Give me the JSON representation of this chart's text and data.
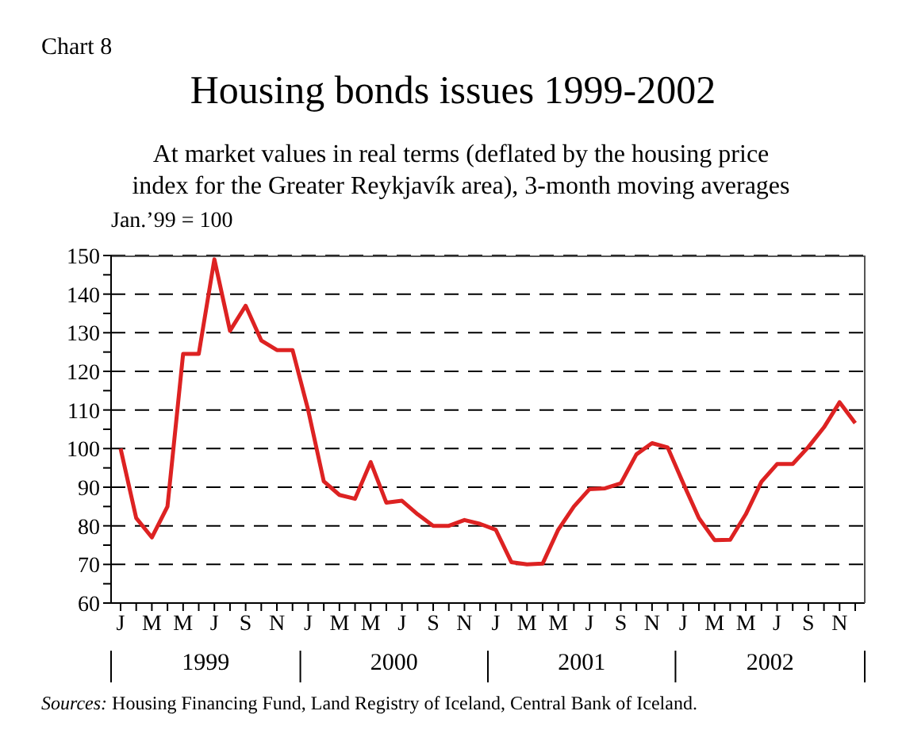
{
  "chart_data": {
    "type": "line",
    "title": "Housing bonds issues 1999-2002",
    "subtitle": "At market values in real terms (deflated by the housing price index for the Greater Reykjavík area), 3-month moving averages",
    "ylabel": "Jan.’99 = 100",
    "annotations": [
      "Chart 8",
      "1999",
      "2000",
      "2001",
      "2002",
      "Sources: Housing Financing Fund, Land Registry of Iceland, Central Bank of Iceland."
    ],
    "categories": [
      "J",
      null,
      "M",
      null,
      "M",
      null,
      "J",
      null,
      "S",
      null,
      "N",
      null,
      "J",
      null,
      "M",
      null,
      "M",
      null,
      "J",
      null,
      "S",
      null,
      "N",
      null,
      "J",
      null,
      "M",
      null,
      "M",
      null,
      "J",
      null,
      "S",
      null,
      "N",
      null,
      "J",
      null,
      "M",
      null,
      "M",
      null,
      "J",
      null,
      "S",
      null,
      "N",
      null
    ],
    "series": [
      {
        "color": "#dd2222",
        "values": [
          100,
          82,
          77,
          85,
          124.5,
          124.5,
          149,
          130.5,
          137,
          128,
          125.5,
          125.5,
          110,
          91.5,
          88,
          87,
          96.5,
          86,
          86.5,
          83,
          80,
          80,
          81.5,
          80.5,
          79,
          70.6,
          70,
          70.2,
          79,
          85,
          89.5,
          89.7,
          91,
          98.5,
          101.4,
          100.3,
          91,
          82,
          76.3,
          76.4,
          83,
          91.4,
          96,
          96,
          100.4,
          105.5,
          112,
          106.6
        ]
      }
    ],
    "ylim": [
      60,
      150
    ],
    "yticks": [
      60,
      {
        "value": 65,
        "label": null
      },
      70,
      {
        "value": 75,
        "label": null
      },
      80,
      {
        "value": 85,
        "label": null
      },
      90,
      {
        "value": 95,
        "label": null
      },
      100,
      {
        "value": 105,
        "label": null
      },
      110,
      {
        "value": 115,
        "label": null
      },
      120,
      {
        "value": 125,
        "label": null
      },
      130,
      {
        "value": 135,
        "label": null
      },
      140,
      {
        "value": 145,
        "label": null
      },
      150
    ],
    "grid": "y",
    "marker": "none",
    "line_style": "solid"
  }
}
